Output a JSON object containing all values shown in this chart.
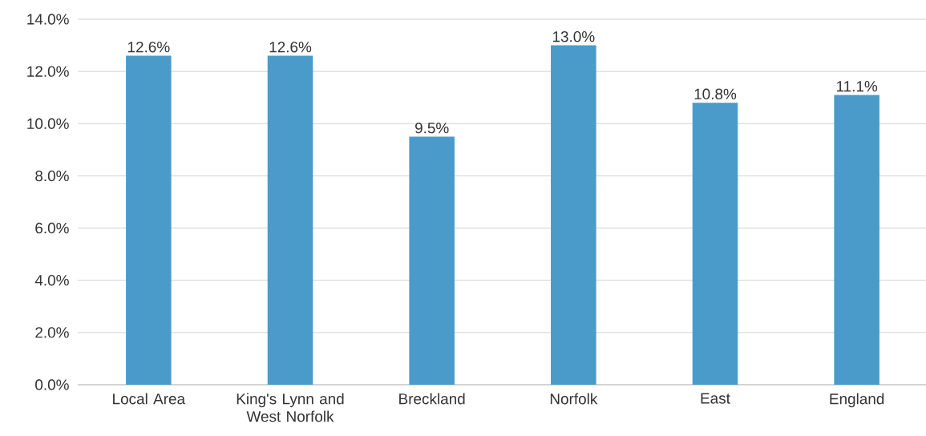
{
  "chart_data": {
    "type": "bar",
    "categories": [
      "Local Area",
      "King's Lynn and West Norfolk",
      "Breckland",
      "Norfolk",
      "East",
      "England"
    ],
    "values": [
      12.6,
      12.6,
      9.5,
      13.0,
      10.8,
      11.1
    ],
    "value_labels": [
      "12.6%",
      "12.6%",
      "9.5%",
      "13.0%",
      "10.8%",
      "11.1%"
    ],
    "color": "#4a9bca",
    "ylim": [
      0,
      14
    ],
    "yticks": [
      {
        "value": 0,
        "label": "0.0%"
      },
      {
        "value": 2,
        "label": "2.0%"
      },
      {
        "value": 4,
        "label": "4.0%"
      },
      {
        "value": 6,
        "label": "6.0%"
      },
      {
        "value": 8,
        "label": "8.0%"
      },
      {
        "value": 10,
        "label": "10.0%"
      },
      {
        "value": 12,
        "label": "12.0%"
      },
      {
        "value": 14,
        "label": "14.0%"
      }
    ],
    "grid": "y"
  }
}
